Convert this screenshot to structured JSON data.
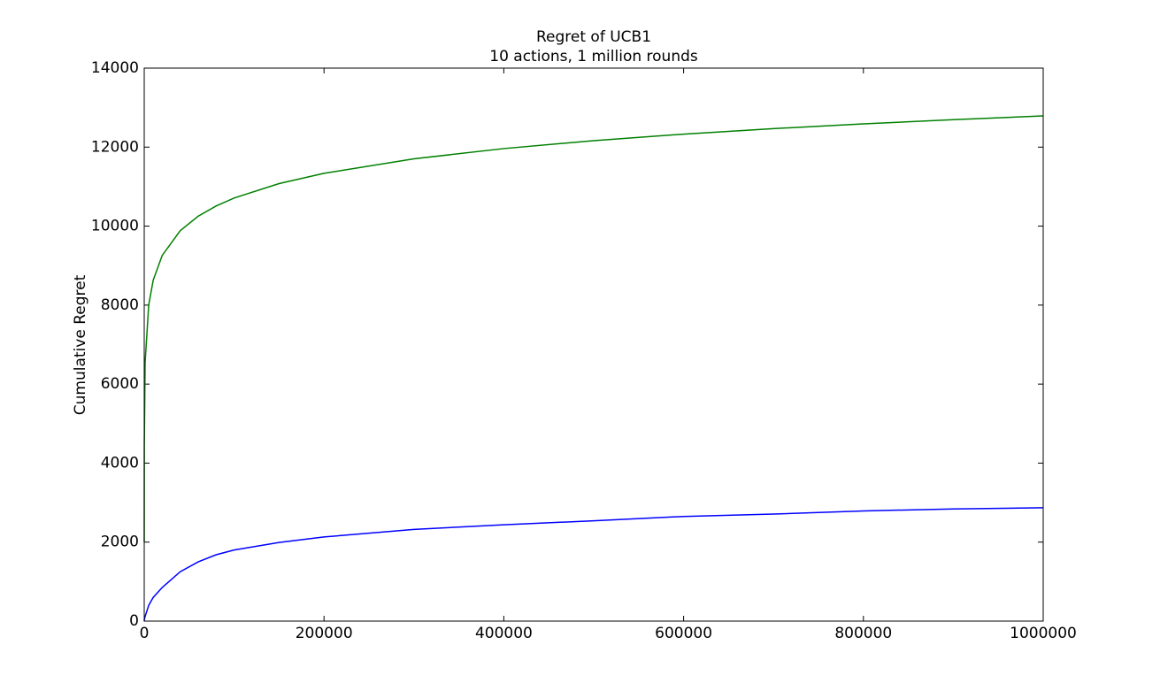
{
  "chart_data": {
    "type": "line",
    "title": "Regret of UCB1",
    "subtitle": "10 actions, 1 million rounds",
    "y_label": "Cumulative Regret",
    "x": [
      0,
      10,
      100,
      1000,
      5000,
      10000,
      20000,
      40000,
      60000,
      80000,
      100000,
      150000,
      200000,
      300000,
      400000,
      500000,
      600000,
      700000,
      800000,
      900000,
      1000000
    ],
    "series": [
      {
        "color": "#008000",
        "values": [
          2000,
          2394,
          4473,
          6553,
          8006,
          8632,
          9258,
          9884,
          10250,
          10510,
          10711,
          11077,
          11337,
          11704,
          11963,
          12164,
          12329,
          12468,
          12588,
          12695,
          12790
        ]
      },
      {
        "color": "#0000ff",
        "values": [
          0,
          5,
          30,
          120,
          400,
          600,
          850,
          1250,
          1500,
          1680,
          1800,
          1990,
          2130,
          2320,
          2440,
          2540,
          2650,
          2710,
          2790,
          2840,
          2870
        ]
      }
    ],
    "xlim": [
      0,
      1000000
    ],
    "ylim": [
      0,
      14000
    ],
    "xticks": [
      0,
      200000,
      400000,
      600000,
      800000,
      1000000
    ],
    "yticks": [
      0,
      2000,
      4000,
      6000,
      8000,
      10000,
      12000,
      14000
    ],
    "grid": false
  }
}
